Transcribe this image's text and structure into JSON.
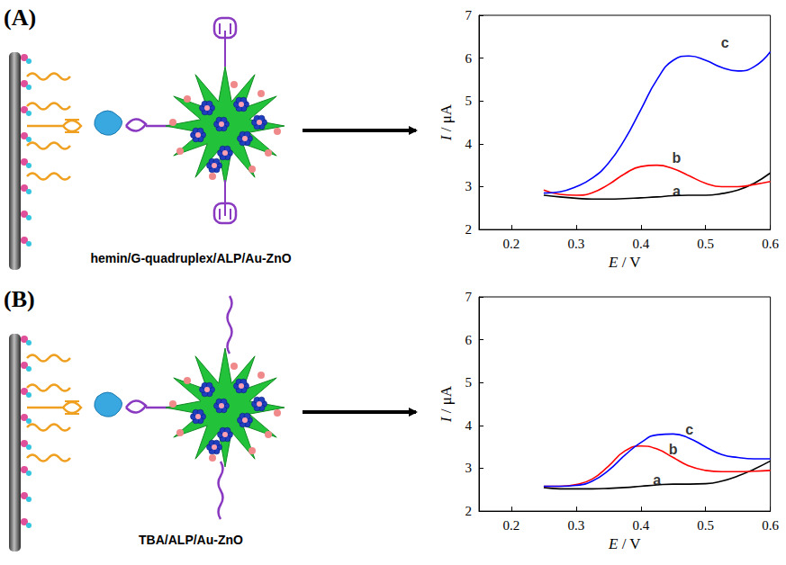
{
  "panels": [
    {
      "letter": "(A)",
      "caption": "hemin/G-quadruplex/ALP/Au-ZnO"
    },
    {
      "letter": "(B)",
      "caption": "TBA/ALP/Au-ZnO"
    }
  ],
  "chart_data": [
    {
      "type": "line",
      "xlabel": "E / V",
      "ylabel": "I / μA",
      "x": [
        0.25,
        0.275,
        0.3,
        0.325,
        0.35,
        0.375,
        0.4,
        0.425,
        0.45,
        0.475,
        0.5,
        0.525,
        0.55,
        0.575,
        0.6
      ],
      "series": [
        {
          "color": "#000000",
          "values": [
            2.8,
            2.76,
            2.73,
            2.71,
            2.71,
            2.72,
            2.74,
            2.76,
            2.79,
            2.8,
            2.8,
            2.84,
            2.92,
            3.08,
            3.32
          ]
        },
        {
          "color": "#ff0000",
          "values": [
            2.92,
            2.82,
            2.8,
            2.86,
            3.05,
            3.3,
            3.47,
            3.5,
            3.42,
            3.25,
            3.08,
            3.0,
            3.0,
            3.05,
            3.12
          ]
        },
        {
          "color": "#0000ff",
          "values": [
            2.85,
            2.88,
            3.0,
            3.2,
            3.55,
            4.1,
            4.8,
            5.5,
            5.95,
            6.05,
            5.95,
            5.78,
            5.7,
            5.8,
            6.15
          ]
        }
      ],
      "annotations": [
        {
          "text": "a",
          "x": 0.455,
          "y": 2.9
        },
        {
          "text": "b",
          "x": 0.455,
          "y": 3.68
        },
        {
          "text": "c",
          "x": 0.53,
          "y": 6.35
        }
      ],
      "xlim": [
        0.15,
        0.6
      ],
      "xticks": [
        0.2,
        0.3,
        0.4,
        0.5,
        0.6
      ],
      "ylim": [
        2,
        7
      ],
      "yticks": [
        2,
        3,
        4,
        5,
        6,
        7
      ],
      "grid": false
    },
    {
      "type": "line",
      "xlabel": "E / V",
      "ylabel": "I / μA",
      "x": [
        0.25,
        0.275,
        0.3,
        0.325,
        0.35,
        0.375,
        0.4,
        0.425,
        0.45,
        0.475,
        0.5,
        0.525,
        0.55,
        0.575,
        0.6
      ],
      "series": [
        {
          "color": "#000000",
          "values": [
            2.55,
            2.52,
            2.52,
            2.52,
            2.53,
            2.55,
            2.58,
            2.61,
            2.63,
            2.63,
            2.64,
            2.7,
            2.82,
            2.98,
            3.17
          ]
        },
        {
          "color": "#ff0000",
          "values": [
            2.58,
            2.58,
            2.62,
            2.75,
            3.05,
            3.4,
            3.52,
            3.45,
            3.25,
            3.05,
            2.95,
            2.92,
            2.92,
            2.93,
            2.95
          ]
        },
        {
          "color": "#0000ff",
          "values": [
            2.58,
            2.58,
            2.6,
            2.7,
            2.95,
            3.3,
            3.6,
            3.78,
            3.8,
            3.7,
            3.5,
            3.32,
            3.25,
            3.22,
            3.22
          ]
        }
      ],
      "annotations": [
        {
          "text": "a",
          "x": 0.425,
          "y": 2.72
        },
        {
          "text": "b",
          "x": 0.45,
          "y": 3.45
        },
        {
          "text": "c",
          "x": 0.475,
          "y": 3.9
        }
      ],
      "xlim": [
        0.15,
        0.6
      ],
      "xticks": [
        0.2,
        0.3,
        0.4,
        0.5,
        0.6
      ],
      "ylim": [
        2,
        7
      ],
      "yticks": [
        2,
        3,
        4,
        5,
        6,
        7
      ],
      "grid": false
    }
  ]
}
